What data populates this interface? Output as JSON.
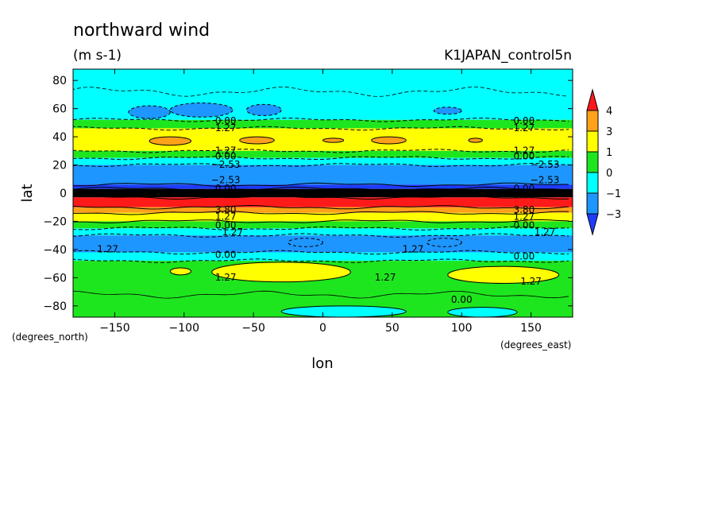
{
  "chart_data": {
    "type": "heatmap",
    "title": "northward wind",
    "subtitle": "(m s-1)",
    "run_label": "K1JAPAN_control5n",
    "xlabel": "lon",
    "ylabel": "lat",
    "x_unit": "(degrees_east)",
    "y_unit": "(degrees_north)",
    "xlim": [
      -180,
      180
    ],
    "ylim": [
      -88,
      88
    ],
    "xticks": [
      -150,
      -100,
      -50,
      0,
      50,
      100,
      150
    ],
    "xtick_labels": [
      "−150",
      "−100",
      "−50",
      "0",
      "50",
      "100",
      "150"
    ],
    "yticks": [
      80,
      60,
      40,
      20,
      0,
      -20,
      -40,
      -60,
      -80
    ],
    "ytick_labels": [
      "80",
      "60",
      "40",
      "20",
      "0",
      "−20",
      "−40",
      "−60",
      "−80"
    ],
    "colorbar": {
      "labels": [
        "4",
        "3",
        "1",
        "0",
        "−1",
        "−3"
      ],
      "levels": [
        {
          "from": 4,
          "to": 5,
          "color": "#ff1a1a"
        },
        {
          "from": 3,
          "to": 4,
          "color": "#ffa21a"
        },
        {
          "from": 1,
          "to": 3,
          "color": "#ffff00"
        },
        {
          "from": 0,
          "to": 1,
          "color": "#1ee61e"
        },
        {
          "from": -1,
          "to": 0,
          "color": "#00ffff"
        },
        {
          "from": -3,
          "to": -1,
          "color": "#1e96ff"
        },
        {
          "from": -5,
          "to": -3,
          "color": "#1e3cff"
        }
      ]
    },
    "bands": [
      {
        "lat": [
          88,
          52
        ],
        "color": "#00ffff"
      },
      {
        "lat": [
          52,
          46
        ],
        "color": "#1ee61e"
      },
      {
        "lat": [
          46,
          30
        ],
        "color": "#ffff00"
      },
      {
        "lat": [
          30,
          25
        ],
        "color": "#1ee61e"
      },
      {
        "lat": [
          25,
          20
        ],
        "color": "#00ffff"
      },
      {
        "lat": [
          20,
          6
        ],
        "color": "#1e96ff"
      },
      {
        "lat": [
          6,
          3
        ],
        "color": "#1e3cff"
      },
      {
        "lat": [
          3,
          -3
        ],
        "color": "#000000"
      },
      {
        "lat": [
          -3,
          -10
        ],
        "color": "#ff1a1a"
      },
      {
        "lat": [
          -10,
          -14
        ],
        "color": "#ffa21a"
      },
      {
        "lat": [
          -14,
          -20
        ],
        "color": "#ffff00"
      },
      {
        "lat": [
          -20,
          -25
        ],
        "color": "#1ee61e"
      },
      {
        "lat": [
          -25,
          -30
        ],
        "color": "#00ffff"
      },
      {
        "lat": [
          -30,
          -42
        ],
        "color": "#1e96ff"
      },
      {
        "lat": [
          -42,
          -48
        ],
        "color": "#00ffff"
      },
      {
        "lat": [
          -48,
          -88
        ],
        "color": "#1ee61e"
      }
    ],
    "patches": [
      {
        "lon": [
          -140,
          -110
        ],
        "lat": [
          62,
          53
        ],
        "color": "#1e96ff"
      },
      {
        "lon": [
          -110,
          -65
        ],
        "lat": [
          64,
          54
        ],
        "color": "#1e96ff"
      },
      {
        "lon": [
          -55,
          -30
        ],
        "lat": [
          63,
          55
        ],
        "color": "#1e96ff"
      },
      {
        "lon": [
          80,
          100
        ],
        "lat": [
          61,
          56
        ],
        "color": "#1e96ff"
      },
      {
        "lon": [
          -125,
          -95
        ],
        "lat": [
          40,
          34
        ],
        "color": "#ffa21a"
      },
      {
        "lon": [
          -60,
          -35
        ],
        "lat": [
          40,
          35
        ],
        "color": "#ffa21a"
      },
      {
        "lon": [
          0,
          15
        ],
        "lat": [
          39,
          36
        ],
        "color": "#ffa21a"
      },
      {
        "lon": [
          35,
          60
        ],
        "lat": [
          40,
          35
        ],
        "color": "#ffa21a"
      },
      {
        "lon": [
          105,
          115
        ],
        "lat": [
          39,
          36
        ],
        "color": "#ffa21a"
      },
      {
        "lon": [
          -25,
          0
        ],
        "lat": [
          -32,
          -38
        ],
        "color": "#1e96ff"
      },
      {
        "lon": [
          75,
          100
        ],
        "lat": [
          -32,
          -38
        ],
        "color": "#1e96ff"
      },
      {
        "lon": [
          -80,
          20
        ],
        "lat": [
          -49,
          -63
        ],
        "color": "#ffff00"
      },
      {
        "lon": [
          90,
          170
        ],
        "lat": [
          -52,
          -64
        ],
        "color": "#ffff00"
      },
      {
        "lon": [
          -110,
          -95
        ],
        "lat": [
          -53,
          -58
        ],
        "color": "#ffff00"
      },
      {
        "lon": [
          -30,
          60
        ],
        "lat": [
          -80,
          -88
        ],
        "color": "#00ffff"
      },
      {
        "lon": [
          90,
          140
        ],
        "lat": [
          -81,
          -88
        ],
        "color": "#00ffff"
      }
    ],
    "contour_labels": [
      "0.00",
      "1.27",
      "−2.53",
      "3.80"
    ]
  }
}
